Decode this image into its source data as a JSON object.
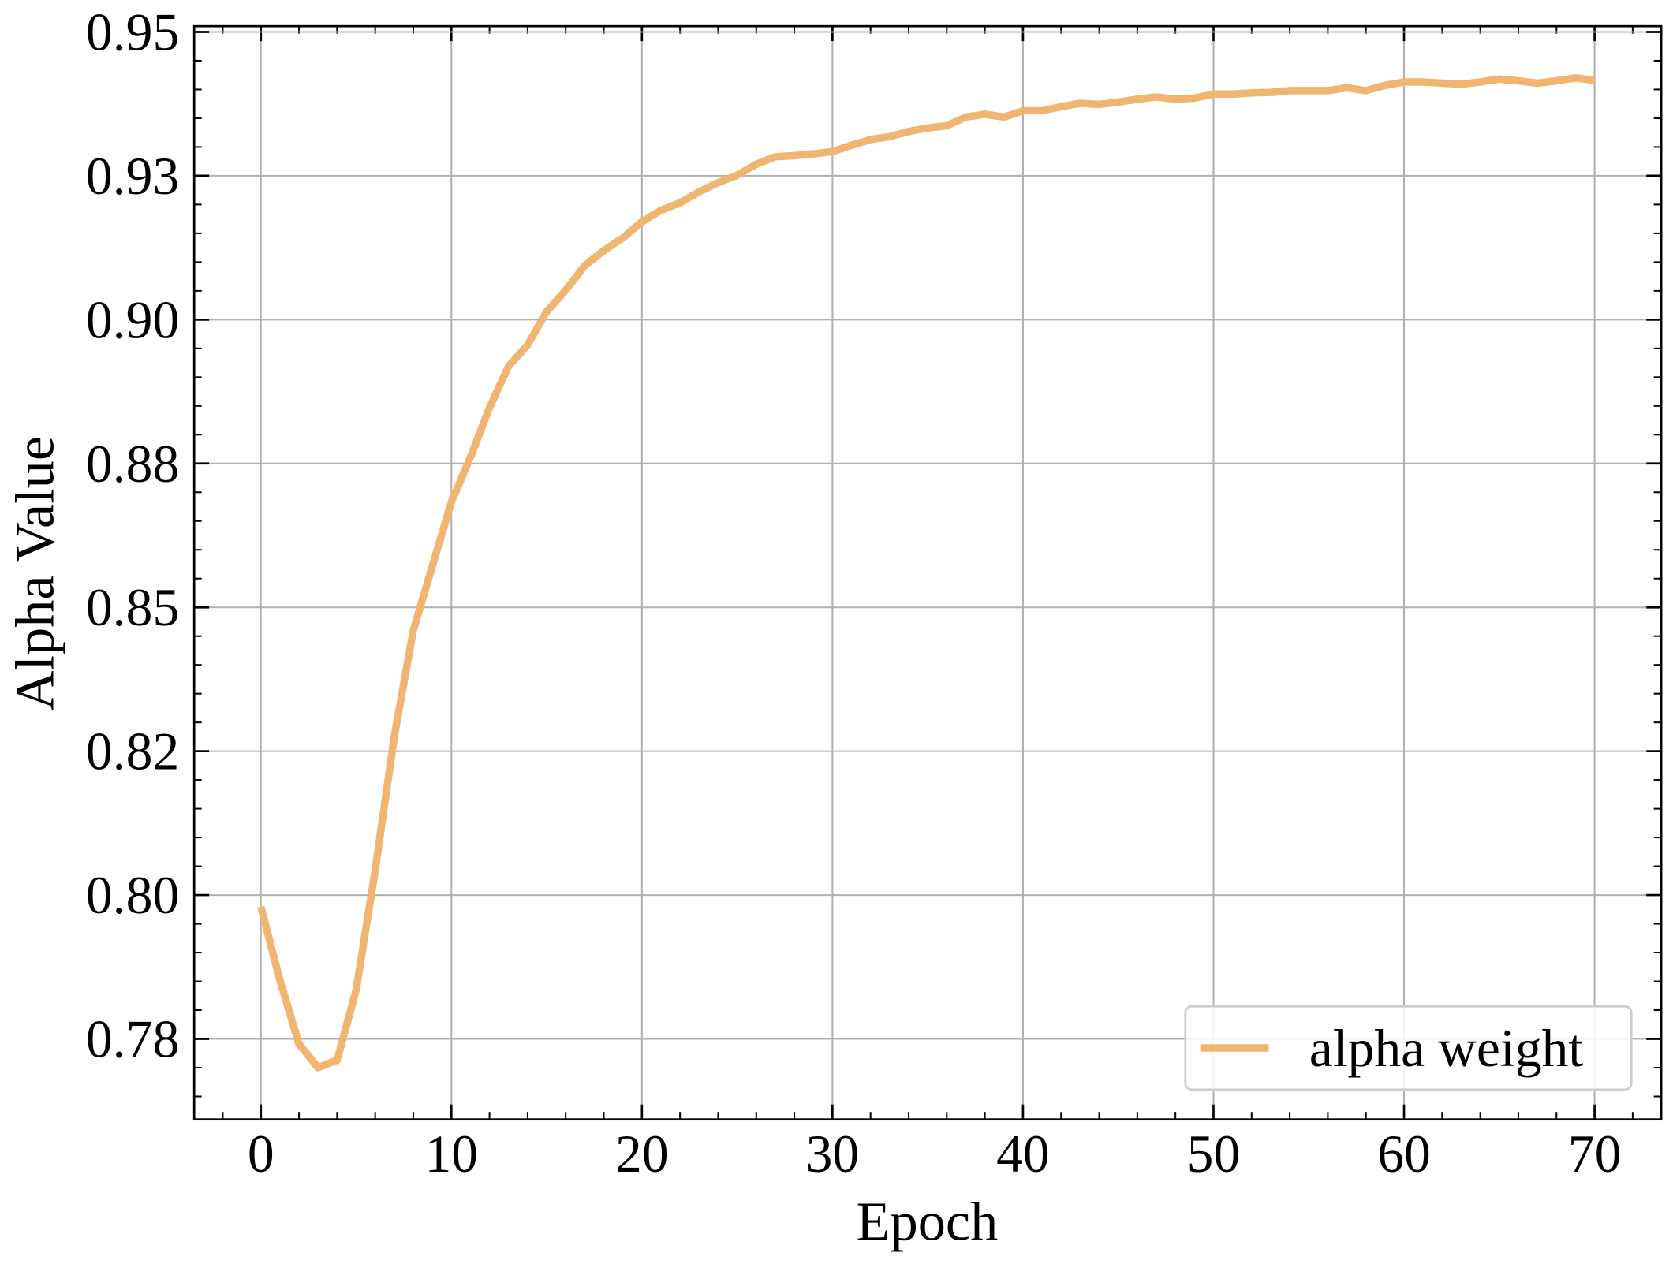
{
  "chart_data": {
    "type": "line",
    "x_label": "Epoch",
    "y_label": "Alpha Value",
    "x": [
      0,
      1,
      2,
      3,
      4,
      5,
      6,
      7,
      8,
      9,
      10,
      11,
      12,
      13,
      14,
      15,
      16,
      17,
      18,
      19,
      20,
      21,
      22,
      23,
      24,
      25,
      26,
      27,
      28,
      29,
      30,
      31,
      32,
      33,
      34,
      35,
      36,
      37,
      38,
      39,
      40,
      41,
      42,
      43,
      44,
      45,
      46,
      47,
      48,
      49,
      50,
      51,
      52,
      53,
      54,
      55,
      56,
      57,
      58,
      59,
      60,
      61,
      62,
      63,
      64,
      65,
      66,
      67,
      68,
      69,
      70
    ],
    "series": [
      {
        "name": "alpha weight",
        "color": "#efb571",
        "values": [
          0.798,
          0.7852,
          0.7741,
          0.77,
          0.7713,
          0.7835,
          0.8043,
          0.8275,
          0.846,
          0.8572,
          0.8683,
          0.8761,
          0.8847,
          0.8919,
          0.8956,
          0.9014,
          0.9051,
          0.9094,
          0.912,
          0.9142,
          0.917,
          0.919,
          0.9203,
          0.9222,
          0.9238,
          0.9251,
          0.927,
          0.9283,
          0.9285,
          0.9288,
          0.9292,
          0.9303,
          0.9313,
          0.9318,
          0.9327,
          0.9333,
          0.9337,
          0.9352,
          0.9357,
          0.9352,
          0.9363,
          0.9363,
          0.937,
          0.9376,
          0.9374,
          0.9378,
          0.9383,
          0.9387,
          0.9383,
          0.9385,
          0.9392,
          0.9392,
          0.9394,
          0.9395,
          0.9398,
          0.9398,
          0.9398,
          0.9403,
          0.9398,
          0.9407,
          0.9413,
          0.9413,
          0.9411,
          0.9409,
          0.9413,
          0.9418,
          0.9415,
          0.9411,
          0.9415,
          0.942,
          0.9416
        ]
      }
    ],
    "xlim": [
      -3.5,
      73.5
    ],
    "xticks": [
      0,
      10,
      20,
      30,
      40,
      50,
      60,
      70
    ],
    "ylim": [
      0.761,
      0.951
    ],
    "yticks": [
      {
        "value": 0.775,
        "label": "0.78"
      },
      {
        "value": 0.8,
        "label": "0.80"
      },
      {
        "value": 0.825,
        "label": "0.82"
      },
      {
        "value": 0.85,
        "label": "0.85"
      },
      {
        "value": 0.875,
        "label": "0.88"
      },
      {
        "value": 0.9,
        "label": "0.90"
      },
      {
        "value": 0.925,
        "label": "0.93"
      },
      {
        "value": 0.95,
        "label": "0.95"
      }
    ],
    "grid": true,
    "legend": "lower right"
  }
}
